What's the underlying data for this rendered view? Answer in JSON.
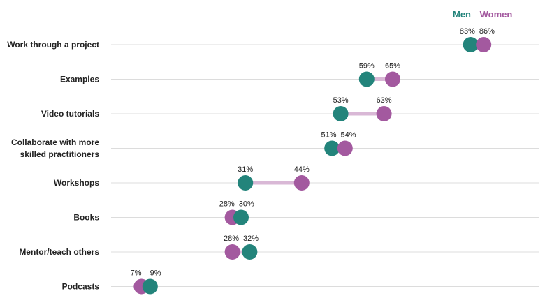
{
  "chart_data": {
    "type": "dumbbell",
    "title": "",
    "xlabel": "",
    "ylabel": "",
    "unit": "%",
    "grid": "horizontal",
    "legend_placement": "top-right",
    "categories": [
      "Work through a project",
      "Examples",
      "Video tutorials",
      "Collaborate with more skilled practitioners",
      "Workshops",
      "Books",
      "Mentor/teach others",
      "Podcasts"
    ],
    "category_lines": [
      [
        "Work through a project"
      ],
      [
        "Examples"
      ],
      [
        "Video tutorials"
      ],
      [
        "Collaborate with more",
        "skilled practitioners"
      ],
      [
        "Workshops"
      ],
      [
        "Books"
      ],
      [
        "Mentor/teach others"
      ],
      [
        "Podcasts"
      ]
    ],
    "series": [
      {
        "name": "Men",
        "color": "#23847b",
        "values": [
          83,
          59,
          53,
          51,
          31,
          30,
          32,
          9
        ]
      },
      {
        "name": "Women",
        "color": "#a3599f",
        "values": [
          86,
          65,
          63,
          54,
          44,
          28,
          28,
          7
        ]
      }
    ],
    "connector_color": "#d9b8d6",
    "xlim": [
      0,
      100
    ]
  }
}
